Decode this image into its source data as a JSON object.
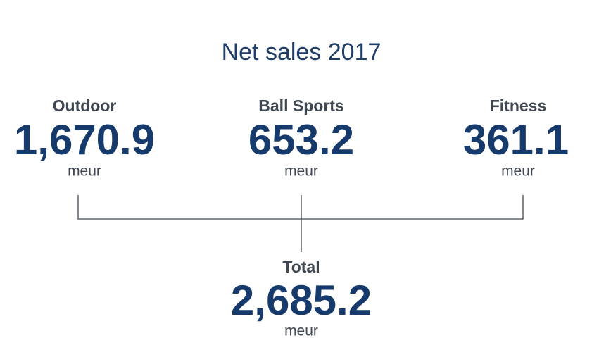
{
  "title": "Net sales 2017",
  "segments": [
    {
      "label": "Outdoor",
      "value": "1,670.9",
      "unit": "meur"
    },
    {
      "label": "Ball Sports",
      "value": "653.2",
      "unit": "meur"
    },
    {
      "label": "Fitness",
      "value": "361.1",
      "unit": "meur"
    }
  ],
  "total": {
    "label": "Total",
    "value": "2,685.2",
    "unit": "meur"
  }
}
